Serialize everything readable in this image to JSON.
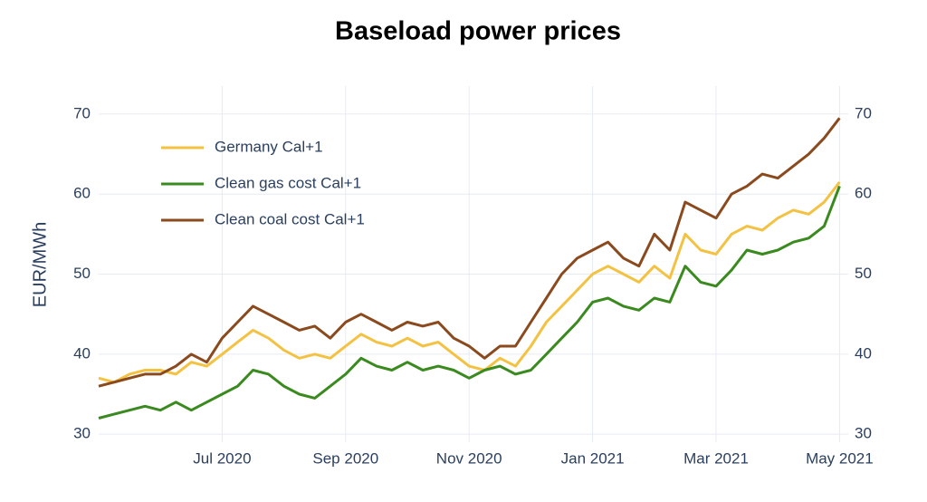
{
  "chart_data": {
    "type": "line",
    "title": "Baseload power prices",
    "y_label": "EUR/MWh",
    "categories": [
      null,
      null,
      null,
      null,
      null,
      null,
      null,
      null,
      "Jul 2020",
      null,
      null,
      null,
      null,
      null,
      null,
      null,
      "Sep 2020",
      null,
      null,
      null,
      null,
      null,
      null,
      null,
      "Nov 2020",
      null,
      null,
      null,
      null,
      null,
      null,
      null,
      "Jan 2021",
      null,
      null,
      null,
      null,
      null,
      null,
      null,
      "Mar 2021",
      null,
      null,
      null,
      null,
      null,
      null,
      null,
      "May 2021"
    ],
    "series": [
      {
        "name": "Germany Cal+1",
        "color": "#f4c242",
        "values": [
          37,
          36.5,
          37.5,
          38,
          38,
          37.5,
          39,
          38.5,
          40,
          41.5,
          43,
          42,
          40.5,
          39.5,
          40,
          39.5,
          41,
          42.5,
          41.5,
          41,
          42,
          41,
          41.5,
          40,
          38.5,
          38,
          39.5,
          38.5,
          41,
          44,
          46,
          48,
          50,
          51,
          50,
          49,
          51,
          49.5,
          55,
          53,
          52.5,
          55,
          56,
          55.5,
          57,
          58,
          57.5,
          59,
          61.5
        ]
      },
      {
        "name": "Clean gas cost Cal+1",
        "color": "#3a8a1f",
        "values": [
          32,
          32.5,
          33,
          33.5,
          33,
          34,
          33,
          34,
          35,
          36,
          38,
          37.5,
          36,
          35,
          34.5,
          36,
          37.5,
          39.5,
          38.5,
          38,
          39,
          38,
          38.5,
          38,
          37,
          38,
          38.5,
          37.5,
          38,
          40,
          42,
          44,
          46.5,
          47,
          46,
          45.5,
          47,
          46.5,
          51,
          49,
          48.5,
          50.5,
          53,
          52.5,
          53,
          54,
          54.5,
          56,
          61
        ]
      },
      {
        "name": "Clean coal cost Cal+1",
        "color": "#8b4a1e",
        "values": [
          36,
          36.5,
          37,
          37.5,
          37.5,
          38.5,
          40,
          39,
          42,
          44,
          46,
          45,
          44,
          43,
          43.5,
          42,
          44,
          45,
          44,
          43,
          44,
          43.5,
          44,
          42,
          41,
          39.5,
          41,
          41,
          44,
          47,
          50,
          52,
          53,
          54,
          52,
          51,
          55,
          53,
          59,
          58,
          57,
          60,
          61,
          62.5,
          62,
          63.5,
          65,
          67,
          69.5
        ]
      }
    ],
    "ylim": [
      29,
      73.5
    ],
    "yticks": [
      30,
      40,
      50,
      60,
      70
    ],
    "y2lim": [
      29,
      73.5
    ],
    "y2ticks": [
      30,
      40,
      50,
      60,
      70
    ],
    "grid": true,
    "legend": "upper left"
  }
}
